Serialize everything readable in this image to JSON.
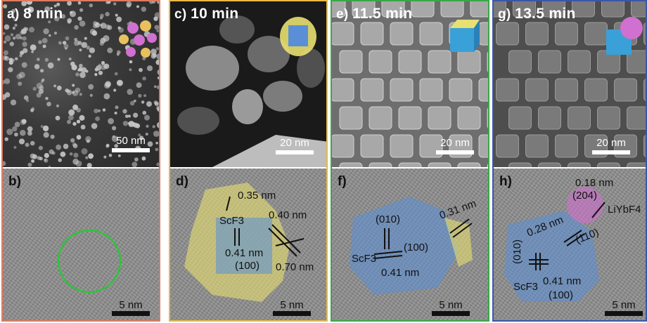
{
  "panels": {
    "a": {
      "letter": "a)",
      "time": "8 min",
      "scale": "50 nm"
    },
    "b": {
      "letter": "b)",
      "scale": "5 nm"
    },
    "c": {
      "letter": "c)",
      "time": "10 min",
      "scale": "20 nm"
    },
    "d": {
      "letter": "d)",
      "scale": "5 nm",
      "annotations": [
        "0.35 nm",
        "0.40 nm",
        "0.41 nm",
        "(100)",
        "0.70 nm",
        "ScF3"
      ]
    },
    "e": {
      "letter": "e)",
      "time": "11.5 min",
      "scale": "20 nm"
    },
    "f": {
      "letter": "f)",
      "scale": "5 nm",
      "annotations": [
        "0.31 nm",
        "(010)",
        "(100)",
        "ScF3",
        "0.41 nm"
      ]
    },
    "g": {
      "letter": "g)",
      "time": "13.5 min",
      "scale": "20 nm"
    },
    "h": {
      "letter": "h)",
      "scale": "5 nm",
      "annotations": [
        "0.18 nm",
        "(204)",
        "LiYbF4",
        "0.28 nm",
        "(110)",
        "(010)",
        "ScF3",
        "0.41 nm",
        "(100)"
      ]
    }
  },
  "colors": {
    "col1_border": "#e07a5f",
    "col2_border": "#e8b84a",
    "col3_border": "#3aa845",
    "col4_border": "#3a56a8",
    "core_blue": "#5a8fd8",
    "shell_yellow": "#e8e070",
    "particle_pink": "#d070d0",
    "circle_green": "#2fc33a"
  }
}
